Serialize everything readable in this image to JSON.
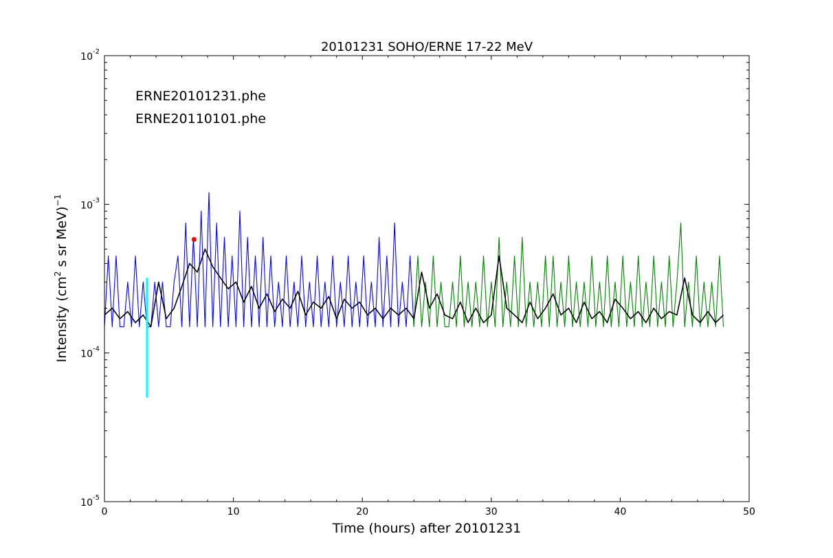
{
  "chart_data": {
    "type": "line",
    "title": "20101231 SOHO/ERNE 17-22 MeV",
    "xlabel": "Time (hours) after 20101231",
    "ylabel": {
      "main": "Intensity (cm",
      "sup2": "2",
      "mid": "  s sr MeV)",
      "sup1": "−1"
    },
    "xlim": [
      0,
      50
    ],
    "ylim": [
      1e-05,
      0.01
    ],
    "yscale": "log",
    "grid": false,
    "x_ticks": [
      0,
      10,
      20,
      30,
      40,
      50
    ],
    "x_tick_labels": [
      "0",
      "10",
      "20",
      "30",
      "40",
      "50"
    ],
    "y_ticks": [
      1e-05,
      0.0001,
      0.001,
      0.01
    ],
    "y_tick_labels": [
      {
        "base": "10",
        "exp": "-5"
      },
      {
        "base": "10",
        "exp": "-4"
      },
      {
        "base": "10",
        "exp": "-3"
      },
      {
        "base": "10",
        "exp": "-2"
      }
    ],
    "legend": {
      "placement": "top-left",
      "entries": [
        {
          "label": "ERNE20101231.phe",
          "color": "#0000ff"
        },
        {
          "label": "ERNE20110101.phe",
          "color": "#008000"
        }
      ]
    },
    "series": [
      {
        "name": "ERNE20101231.phe",
        "color": "#0000ff",
        "x": [
          0,
          0.3,
          0.6,
          0.9,
          1.2,
          1.5,
          1.8,
          2.1,
          2.4,
          2.7,
          3.0,
          3.3,
          3.6,
          3.9,
          4.2,
          4.5,
          4.8,
          5.1,
          5.4,
          5.7,
          6.0,
          6.3,
          6.6,
          6.9,
          7.2,
          7.5,
          7.8,
          8.1,
          8.4,
          8.7,
          9.0,
          9.3,
          9.6,
          9.9,
          10.2,
          10.5,
          10.8,
          11.1,
          11.4,
          11.7,
          12.0,
          12.3,
          12.6,
          12.9,
          13.2,
          13.5,
          13.8,
          14.1,
          14.4,
          14.7,
          15.0,
          15.3,
          15.6,
          15.9,
          16.2,
          16.5,
          16.8,
          17.1,
          17.4,
          17.7,
          18.0,
          18.3,
          18.6,
          18.9,
          19.2,
          19.5,
          19.8,
          20.1,
          20.4,
          20.7,
          21.0,
          21.3,
          21.6,
          21.9,
          22.2,
          22.5,
          22.8,
          23.1,
          23.4,
          23.7,
          24.0
        ],
        "y": [
          0.00015,
          0.00045,
          0.00015,
          0.00045,
          0.00015,
          0.00015,
          0.0003,
          0.00015,
          0.00045,
          0.00015,
          0.0003,
          0.00015,
          0.00015,
          0.0003,
          0.00015,
          0.0003,
          0.00015,
          0.00015,
          0.0003,
          0.00045,
          0.00015,
          0.00075,
          0.00015,
          0.0006,
          0.00015,
          0.0009,
          0.00015,
          0.0012,
          0.00015,
          0.00075,
          0.00015,
          0.0006,
          0.00015,
          0.00045,
          0.00015,
          0.0009,
          0.00015,
          0.0006,
          0.00015,
          0.00045,
          0.00015,
          0.0006,
          0.00015,
          0.00045,
          0.00015,
          0.0003,
          0.00015,
          0.00045,
          0.00015,
          0.0003,
          0.00015,
          0.00045,
          0.00015,
          0.0003,
          0.00015,
          0.00045,
          0.00015,
          0.0003,
          0.00015,
          0.00045,
          0.00015,
          0.0003,
          0.00015,
          0.00045,
          0.00015,
          0.0003,
          0.00015,
          0.00045,
          0.00015,
          0.0003,
          0.00015,
          0.0006,
          0.00015,
          0.00045,
          0.00015,
          0.00075,
          0.00015,
          0.0003,
          0.00015,
          0.00045,
          0.00015
        ]
      },
      {
        "name": "ERNE20110101.phe",
        "color": "#008000",
        "x": [
          24.0,
          24.3,
          24.6,
          24.9,
          25.2,
          25.5,
          25.8,
          26.1,
          26.4,
          26.7,
          27.0,
          27.3,
          27.6,
          27.9,
          28.2,
          28.5,
          28.8,
          29.1,
          29.4,
          29.7,
          30.0,
          30.3,
          30.6,
          30.9,
          31.2,
          31.5,
          31.8,
          32.1,
          32.4,
          32.7,
          33.0,
          33.3,
          33.6,
          33.9,
          34.2,
          34.5,
          34.8,
          35.1,
          35.4,
          35.7,
          36.0,
          36.3,
          36.6,
          36.9,
          37.2,
          37.5,
          37.8,
          38.1,
          38.4,
          38.7,
          39.0,
          39.3,
          39.6,
          39.9,
          40.2,
          40.5,
          40.8,
          41.1,
          41.4,
          41.7,
          42.0,
          42.3,
          42.6,
          42.9,
          43.2,
          43.5,
          43.8,
          44.1,
          44.4,
          44.7,
          45.0,
          45.3,
          45.6,
          45.9,
          46.2,
          46.5,
          46.8,
          47.1,
          47.4,
          47.7,
          48.0
        ],
        "y": [
          0.00015,
          0.00045,
          0.00015,
          0.0003,
          0.00015,
          0.00045,
          0.00015,
          0.0003,
          0.00015,
          0.00015,
          0.0003,
          0.00015,
          0.00045,
          0.00015,
          0.0003,
          0.00015,
          0.0003,
          0.00015,
          0.00045,
          0.00015,
          0.0003,
          0.00015,
          0.0006,
          0.00015,
          0.0003,
          0.00015,
          0.00045,
          0.00015,
          0.0006,
          0.00015,
          0.0003,
          0.00015,
          0.0003,
          0.00015,
          0.00045,
          0.00015,
          0.00045,
          0.00015,
          0.0003,
          0.00015,
          0.00045,
          0.00015,
          0.0003,
          0.00015,
          0.0003,
          0.00015,
          0.00045,
          0.00015,
          0.0003,
          0.00015,
          0.00045,
          0.00015,
          0.0003,
          0.00015,
          0.00045,
          0.00015,
          0.0003,
          0.00015,
          0.00045,
          0.00015,
          0.0003,
          0.00015,
          0.00045,
          0.00015,
          0.0003,
          0.00015,
          0.00045,
          0.00015,
          0.0003,
          0.00075,
          0.00015,
          0.0003,
          0.00015,
          0.00045,
          0.00015,
          0.0003,
          0.00015,
          0.0003,
          0.00015,
          0.00045,
          0.00015
        ]
      },
      {
        "name": "",
        "color": "#000000",
        "x": [
          0,
          0.6,
          1.2,
          1.8,
          2.4,
          3.0,
          3.6,
          4.2,
          4.8,
          5.4,
          6.0,
          6.6,
          7.2,
          7.8,
          8.4,
          9.0,
          9.6,
          10.2,
          10.8,
          11.4,
          12.0,
          12.6,
          13.2,
          13.8,
          14.4,
          15.0,
          15.6,
          16.2,
          16.8,
          17.4,
          18.0,
          18.6,
          19.2,
          19.8,
          20.4,
          21.0,
          21.6,
          22.2,
          22.8,
          23.4,
          24.0,
          24.6,
          25.2,
          25.8,
          26.4,
          27.0,
          27.6,
          28.2,
          28.8,
          29.4,
          30.0,
          30.6,
          31.2,
          31.8,
          32.4,
          33.0,
          33.6,
          34.2,
          34.8,
          35.4,
          36.0,
          36.6,
          37.2,
          37.8,
          38.4,
          39.0,
          39.6,
          40.2,
          40.8,
          41.4,
          42.0,
          42.6,
          43.2,
          43.8,
          44.4,
          45.0,
          45.6,
          46.2,
          46.8,
          47.4,
          48.0
        ],
        "y": [
          0.00018,
          0.0002,
          0.00017,
          0.00019,
          0.00016,
          0.00018,
          0.00015,
          0.0003,
          0.00017,
          0.0002,
          0.00028,
          0.0004,
          0.00035,
          0.0005,
          0.00038,
          0.00032,
          0.00027,
          0.0003,
          0.00022,
          0.00028,
          0.0002,
          0.00025,
          0.00019,
          0.00023,
          0.0002,
          0.00026,
          0.00018,
          0.00022,
          0.0002,
          0.00024,
          0.00017,
          0.00023,
          0.0002,
          0.00022,
          0.00018,
          0.0002,
          0.00017,
          0.0002,
          0.00018,
          0.0002,
          0.00017,
          0.00035,
          0.0002,
          0.00025,
          0.00018,
          0.00017,
          0.00022,
          0.00016,
          0.0002,
          0.00016,
          0.00018,
          0.00045,
          0.0002,
          0.00018,
          0.00016,
          0.00022,
          0.00017,
          0.0002,
          0.00025,
          0.00018,
          0.0002,
          0.00016,
          0.00022,
          0.00017,
          0.00019,
          0.00016,
          0.00023,
          0.0002,
          0.00017,
          0.00019,
          0.00016,
          0.0002,
          0.00017,
          0.00019,
          0.00018,
          0.00032,
          0.00018,
          0.00016,
          0.00019,
          0.00016,
          0.00018
        ]
      }
    ],
    "markers": [
      {
        "name": "vertical-bar",
        "color": "#00ffff",
        "x": 3.3,
        "y": [
          5e-05,
          0.00032
        ]
      },
      {
        "name": "peak-marker",
        "color": "#ff0000",
        "x": 6.95,
        "y": 0.00058
      }
    ]
  }
}
